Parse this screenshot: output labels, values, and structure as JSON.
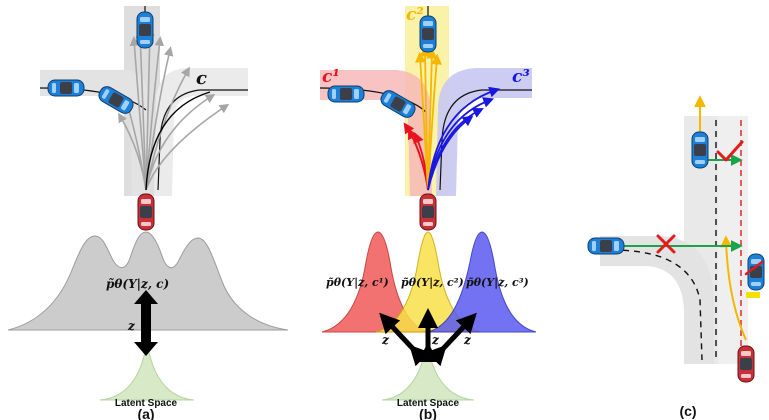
{
  "panels": {
    "a": {
      "caption": "(a)",
      "context_label": "c",
      "density_label": "p̃θ(Y|z, c)",
      "latent_var": "z",
      "latent_label": "Latent Space"
    },
    "b": {
      "caption": "(b)",
      "context_labels": [
        "c¹",
        "c²",
        "c³"
      ],
      "density_labels": [
        "p̃θ(Y|z, c¹)",
        "p̃θ(Y|z, c²)",
        "p̃θ(Y|z, c³)"
      ],
      "latent_vars": [
        "z",
        "z",
        "z"
      ],
      "latent_label": "Latent Space"
    },
    "c": {
      "caption": "(c)"
    }
  },
  "colors": {
    "route_gray": "#dcdcdc",
    "trajectory_gray": "#a6a6a6",
    "route_red": "#f7b8b8",
    "route_yellow": "#fbf1a0",
    "route_blue": "#c8c8f3",
    "traj_red": "#e8121f",
    "traj_yellow": "#f4b800",
    "traj_blue": "#1818e0",
    "car_blue": "#1d7fd6",
    "car_red": "#c8303a",
    "latent_green": "#d7e9c6",
    "arrow_green": "#1aa34a",
    "mark_red": "#e21b1b"
  }
}
